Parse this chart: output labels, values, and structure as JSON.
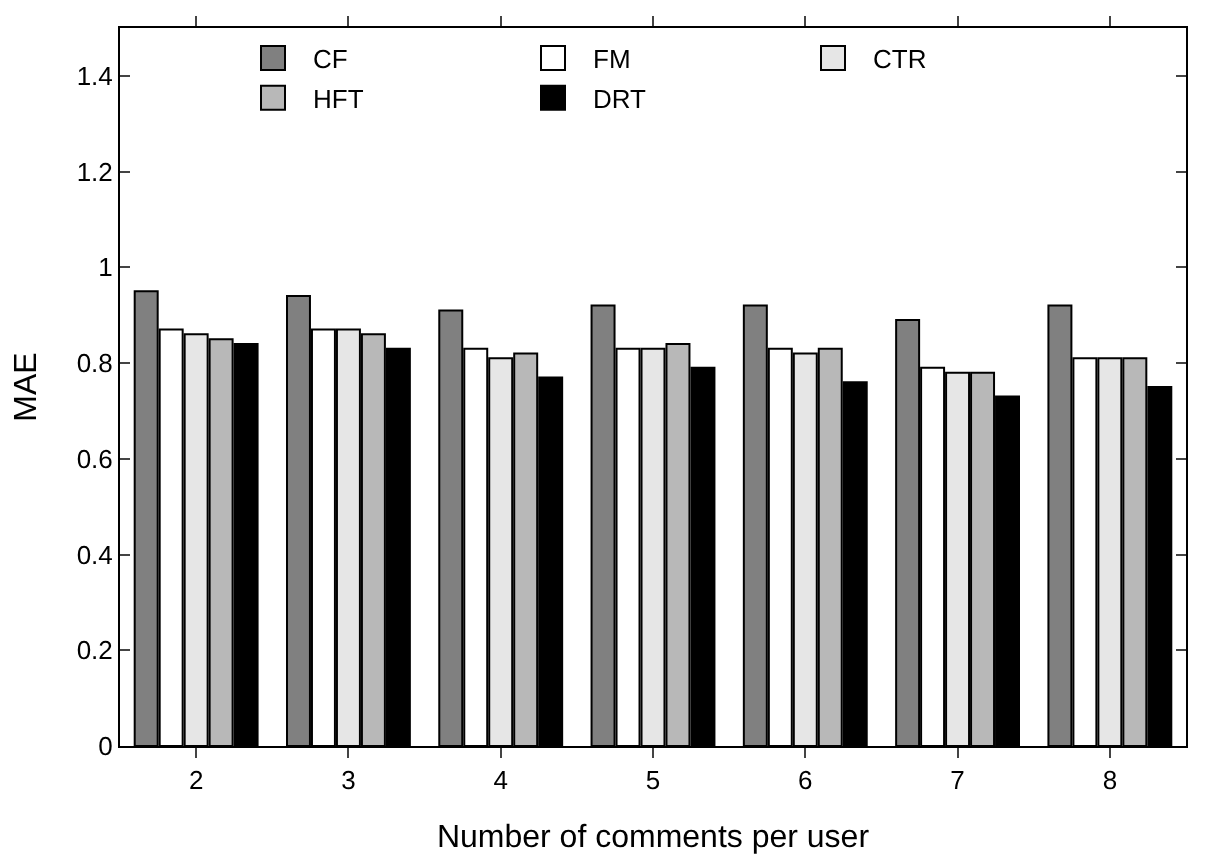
{
  "chart_data": {
    "type": "bar",
    "xlabel": "Number of comments per user",
    "ylabel": "MAE",
    "categories": [
      "2",
      "3",
      "4",
      "5",
      "6",
      "7",
      "8"
    ],
    "series": [
      {
        "name": "CF",
        "color": "#808080",
        "values": [
          0.95,
          0.94,
          0.91,
          0.92,
          0.92,
          0.89,
          0.92
        ]
      },
      {
        "name": "FM",
        "color": "#ffffff",
        "values": [
          0.87,
          0.87,
          0.83,
          0.83,
          0.83,
          0.79,
          0.81
        ]
      },
      {
        "name": "CTR",
        "color": "#e6e6e6",
        "values": [
          0.86,
          0.87,
          0.81,
          0.83,
          0.82,
          0.78,
          0.81
        ]
      },
      {
        "name": "HFT",
        "color": "#b8b8b8",
        "values": [
          0.85,
          0.86,
          0.82,
          0.84,
          0.83,
          0.78,
          0.81
        ]
      },
      {
        "name": "DRT",
        "color": "#000000",
        "values": [
          0.84,
          0.83,
          0.77,
          0.79,
          0.76,
          0.73,
          0.75
        ]
      }
    ],
    "ylim": [
      0,
      1.5
    ],
    "yticks": [
      0,
      0.2,
      0.4,
      0.6,
      0.8,
      1,
      1.2,
      1.4
    ],
    "legend": "top"
  }
}
